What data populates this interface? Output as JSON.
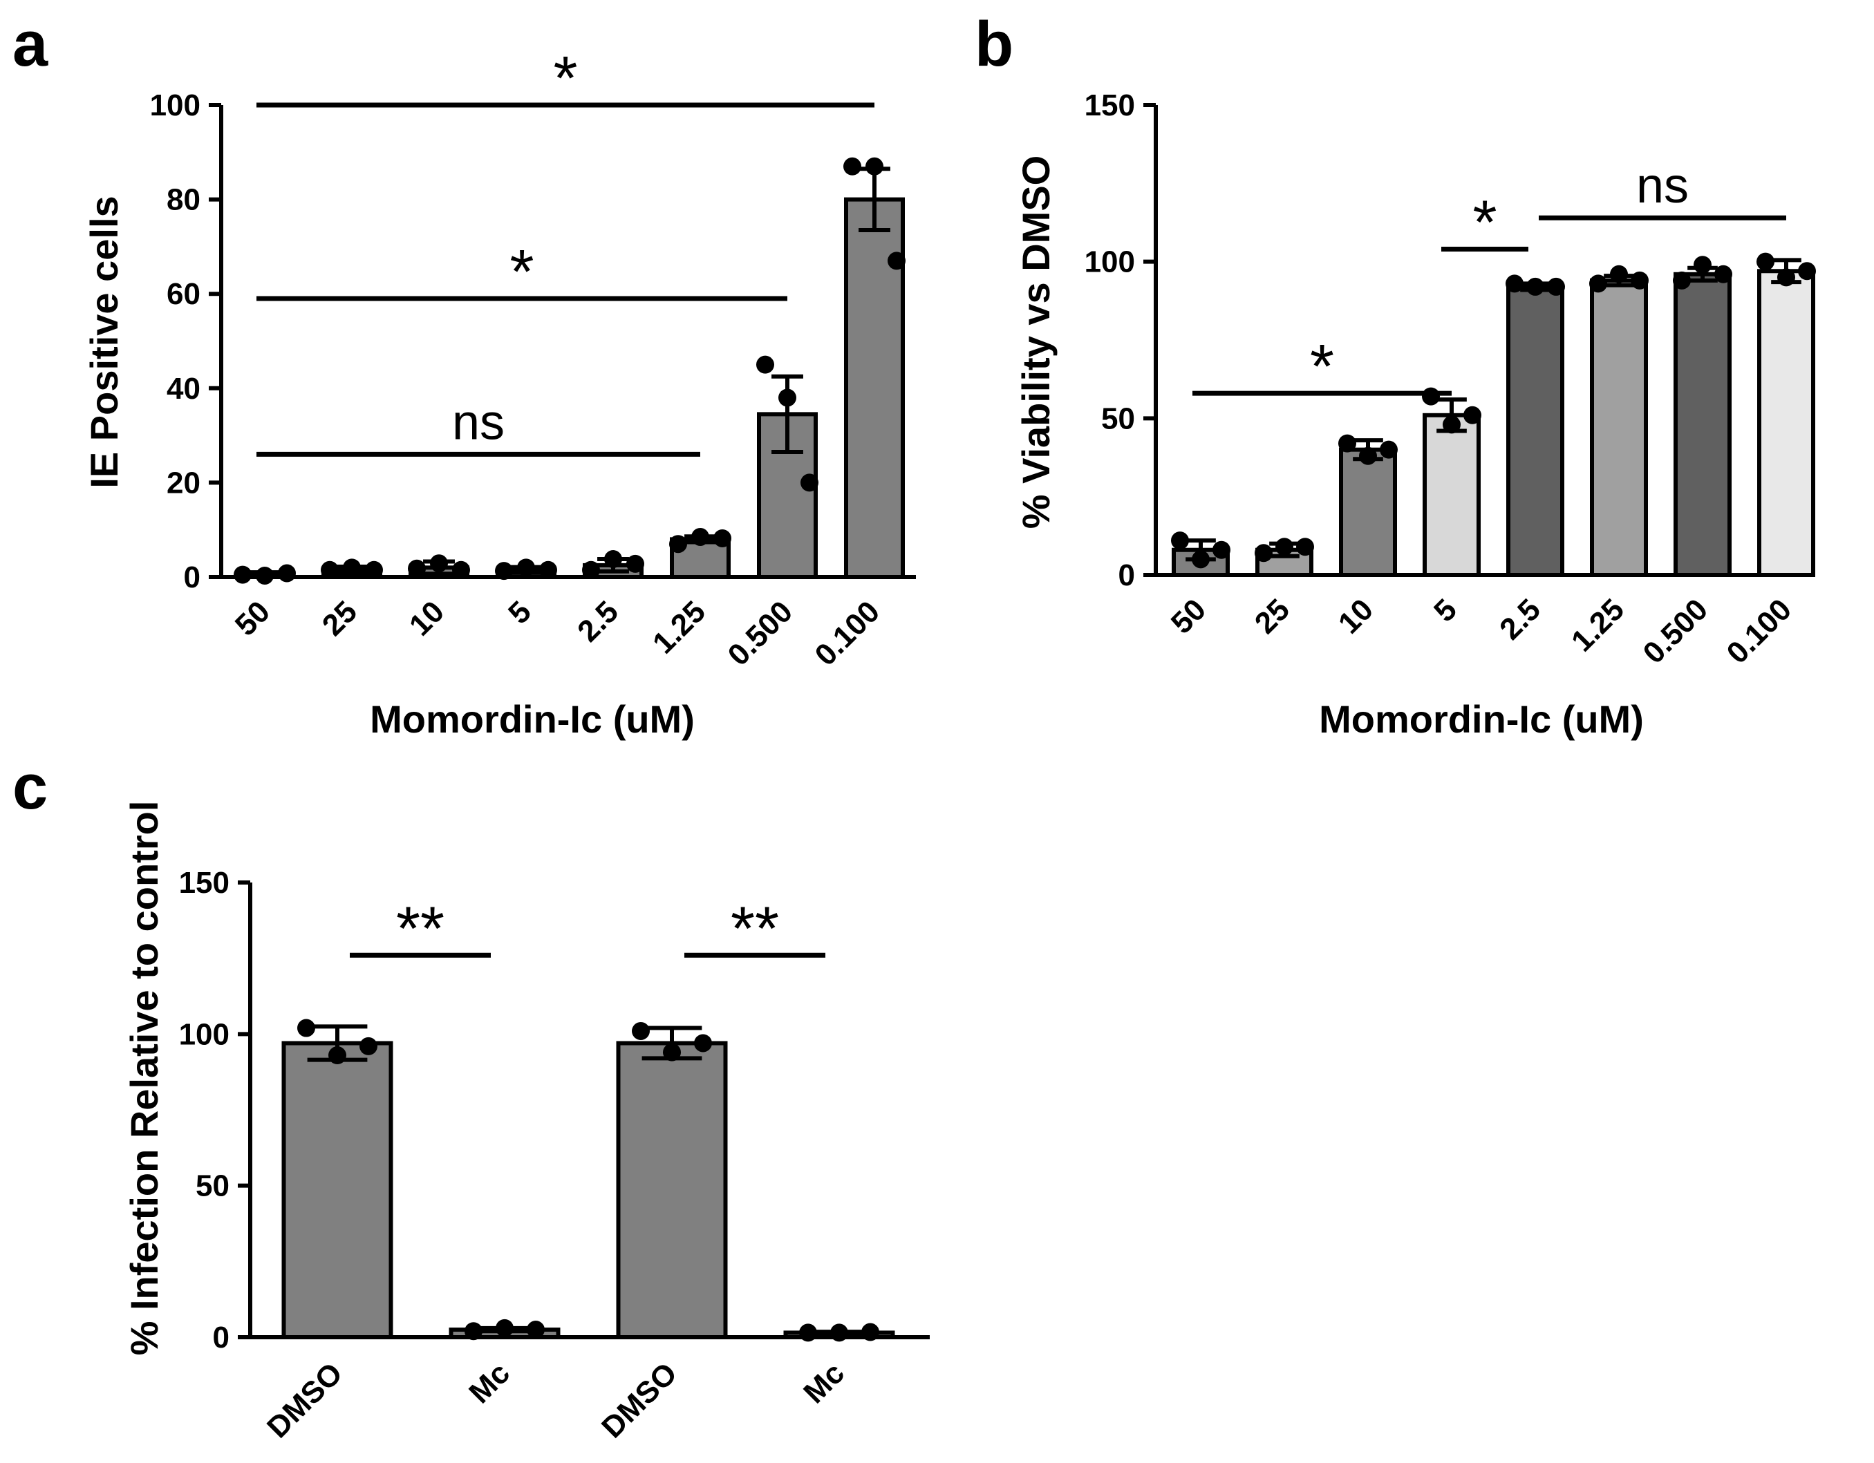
{
  "panel_labels": [
    "a",
    "b",
    "c"
  ],
  "chart_data": [
    {
      "panel": "a",
      "type": "bar",
      "xlabel": "Momordin-Ic (uM)",
      "ylabel": "IE Positive cells",
      "ylim": [
        0,
        100
      ],
      "yticks": [
        0,
        20,
        40,
        60,
        80,
        100
      ],
      "categories": [
        "50",
        "25",
        "10",
        "5",
        "2.5",
        "1.25",
        "0.500",
        "0.100"
      ],
      "values": [
        0.5,
        1.5,
        2,
        1.5,
        2.5,
        8,
        34.5,
        80
      ],
      "errors": [
        0.5,
        0.7,
        1.3,
        0.6,
        1.3,
        0.6,
        8,
        6.5
      ],
      "points": [
        [
          0.5,
          0.3,
          0.8
        ],
        [
          1.5,
          2.0,
          1.5
        ],
        [
          1.8,
          2.9,
          1.5
        ],
        [
          1.3,
          2.0,
          1.5
        ],
        [
          1.5,
          3.8,
          2.8
        ],
        [
          7.0,
          8.5,
          8.2
        ],
        [
          45,
          38,
          20
        ],
        [
          87,
          87,
          67
        ]
      ],
      "bar_colors": [
        "#808080",
        "#808080",
        "#808080",
        "#808080",
        "#808080",
        "#808080",
        "#808080",
        "#808080"
      ],
      "annotations": [
        {
          "text": "*",
          "from": 0,
          "to": 7,
          "y": 100
        },
        {
          "text": "*",
          "from": 0,
          "to": 6,
          "y": 59
        },
        {
          "text": "ns",
          "from": 0,
          "to": 5,
          "y": 26
        }
      ]
    },
    {
      "panel": "b",
      "type": "bar",
      "xlabel": "Momordin-Ic (uM)",
      "ylabel": "% Viability vs DMSO",
      "ylim": [
        0,
        150
      ],
      "yticks": [
        0,
        50,
        100,
        150
      ],
      "categories": [
        "50",
        "25",
        "10",
        "5",
        "2.5",
        "1.25",
        "0.500",
        "0.100"
      ],
      "values": [
        8,
        8,
        40,
        51,
        92,
        94,
        96,
        97
      ],
      "errors": [
        3,
        2,
        3,
        5,
        1,
        1.5,
        2,
        3.5
      ],
      "points": [
        [
          11,
          5,
          8
        ],
        [
          7,
          9,
          9
        ],
        [
          42,
          38,
          40
        ],
        [
          57,
          48,
          51
        ],
        [
          93,
          92,
          92
        ],
        [
          93,
          96,
          94
        ],
        [
          94,
          99,
          96
        ],
        [
          100,
          95,
          97
        ]
      ],
      "bar_colors": [
        "#808080",
        "#a0a0a0",
        "#808080",
        "#d8d8d8",
        "#606060",
        "#a0a0a0",
        "#606060",
        "#e8e8e8"
      ],
      "annotations": [
        {
          "text": "*",
          "from": 0,
          "to": 3,
          "y": 58
        },
        {
          "text": "*",
          "from": 3,
          "to": 4,
          "y": 104
        },
        {
          "text": "ns",
          "from": 4,
          "to": 7,
          "y": 114
        }
      ]
    },
    {
      "panel": "c",
      "type": "bar",
      "xlabel": "",
      "ylabel": "% Infection Relative to control",
      "ylim": [
        0,
        150
      ],
      "yticks": [
        0,
        50,
        100,
        150
      ],
      "categories": [
        "DMSO",
        "Mc",
        "DMSO",
        "Mc"
      ],
      "values": [
        97,
        2.5,
        97,
        1.5
      ],
      "errors": [
        5.5,
        0.5,
        5,
        0.3
      ],
      "points": [
        [
          102,
          93,
          96
        ],
        [
          2,
          3,
          2.5
        ],
        [
          101,
          94,
          97
        ],
        [
          1.5,
          1.5,
          1.7
        ]
      ],
      "bar_colors": [
        "#808080",
        "#808080",
        "#808080",
        "#808080"
      ],
      "annotations": [
        {
          "text": "**",
          "from": 0,
          "to": 1,
          "y": 126
        },
        {
          "text": "**",
          "from": 2,
          "to": 3,
          "y": 126
        }
      ]
    }
  ]
}
